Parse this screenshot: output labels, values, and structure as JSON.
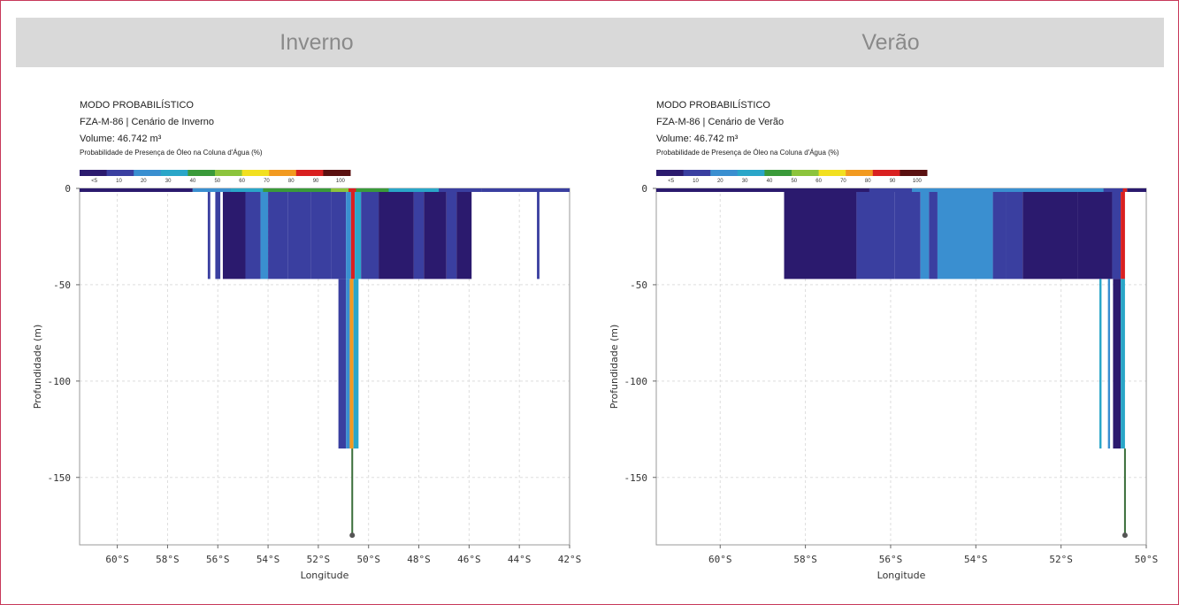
{
  "header": {
    "left_label": "Inverno",
    "right_label": "Verão"
  },
  "colors": {
    "frame": "#c8385a",
    "header_bg": "#d9d9d9",
    "header_text": "#8a8a8a",
    "scale": [
      "#2b1a6e",
      "#3a3fa0",
      "#3a8fd0",
      "#2aa6c8",
      "#3a9a3a",
      "#8cc43c",
      "#f2e020",
      "#f29a20",
      "#d92020",
      "#5a1010"
    ]
  },
  "colorbar": {
    "title": "Probabilidade de Presença de Óleo na Coluna d'Água (%)",
    "ticks": [
      "<5",
      "10",
      "20",
      "30",
      "40",
      "50",
      "60",
      "70",
      "80",
      "90",
      "100"
    ]
  },
  "chart_data": [
    {
      "type": "heatmap",
      "mode_label": "MODO PROBABILÍSTICO",
      "scenario": "FZA-M-86 | Cenário de Inverno",
      "volume": "Volume: 46.742 m³",
      "xlabel": "Longitude",
      "ylabel": "Profundidade (m)",
      "xlim": [
        -61.5,
        -42
      ],
      "ylim": [
        -185,
        0
      ],
      "xticks": [
        "60°S",
        "58°S",
        "56°S",
        "54°S",
        "52°S",
        "50°S",
        "48°S",
        "46°S",
        "44°S",
        "42°S"
      ],
      "xtick_values": [
        -60,
        -58,
        -56,
        -54,
        -52,
        -50,
        -48,
        -46,
        -44,
        -42
      ],
      "yticks": [
        "0",
        "-50",
        "-100",
        "-150"
      ],
      "ytick_values": [
        0,
        -50,
        -100,
        -150
      ],
      "grid": true,
      "surface_strip": [
        {
          "x0": -61.5,
          "x1": -57,
          "c": 0
        },
        {
          "x0": -57,
          "x1": -55.5,
          "c": 2
        },
        {
          "x0": -55.5,
          "x1": -54.2,
          "c": 3
        },
        {
          "x0": -54.2,
          "x1": -52.8,
          "c": 4
        },
        {
          "x0": -52.8,
          "x1": -51.5,
          "c": 4
        },
        {
          "x0": -51.5,
          "x1": -50.8,
          "c": 5
        },
        {
          "x0": -50.8,
          "x1": -50.5,
          "c": 8
        },
        {
          "x0": -50.5,
          "x1": -49.2,
          "c": 4
        },
        {
          "x0": -49.2,
          "x1": -47.2,
          "c": 3
        },
        {
          "x0": -47.2,
          "x1": -45.5,
          "c": 1
        },
        {
          "x0": -45.5,
          "x1": -42,
          "c": 1
        }
      ],
      "upper_columns": [
        {
          "x0": -56.4,
          "x1": -56.3,
          "c": 1
        },
        {
          "x0": -56.1,
          "x1": -55.9,
          "c": 1
        },
        {
          "x0": -55.8,
          "x1": -54.9,
          "c": 0
        },
        {
          "x0": -54.9,
          "x1": -54.3,
          "c": 1
        },
        {
          "x0": -54.3,
          "x1": -54.0,
          "c": 2
        },
        {
          "x0": -54.0,
          "x1": -53.2,
          "c": 1
        },
        {
          "x0": -53.2,
          "x1": -52.3,
          "c": 1
        },
        {
          "x0": -52.3,
          "x1": -51.5,
          "c": 1
        },
        {
          "x0": -51.5,
          "x1": -50.9,
          "c": 1
        },
        {
          "x0": -50.9,
          "x1": -50.7,
          "c": 2
        },
        {
          "x0": -50.7,
          "x1": -50.55,
          "c": 8
        },
        {
          "x0": -50.55,
          "x1": -50.3,
          "c": 3
        },
        {
          "x0": -50.3,
          "x1": -49.6,
          "c": 1
        },
        {
          "x0": -49.6,
          "x1": -48.2,
          "c": 0
        },
        {
          "x0": -48.2,
          "x1": -47.8,
          "c": 1
        },
        {
          "x0": -47.8,
          "x1": -46.9,
          "c": 0
        },
        {
          "x0": -46.9,
          "x1": -46.5,
          "c": 1
        },
        {
          "x0": -46.5,
          "x1": -45.9,
          "c": 0
        },
        {
          "x0": -43.3,
          "x1": -43.2,
          "c": 1
        }
      ],
      "upper_depth": -47,
      "lower_columns": [
        {
          "x0": -51.2,
          "x1": -50.9,
          "c": 1
        },
        {
          "x0": -50.9,
          "x1": -50.75,
          "c": 2
        },
        {
          "x0": -50.75,
          "x1": -50.6,
          "c": 7
        },
        {
          "x0": -50.6,
          "x1": -50.4,
          "c": 3
        }
      ],
      "lower_depth": -135,
      "pipe": {
        "x": -50.65,
        "depth": -180
      }
    },
    {
      "type": "heatmap",
      "mode_label": "MODO PROBABILÍSTICO",
      "scenario": "FZA-M-86 | Cenário de Verão",
      "volume": "Volume: 46.742 m³",
      "xlabel": "Longitude",
      "ylabel": "Profundidade (m)",
      "xlim": [
        -61.5,
        -50
      ],
      "ylim": [
        -185,
        0
      ],
      "xticks": [
        "60°S",
        "58°S",
        "56°S",
        "54°S",
        "52°S",
        "50°S"
      ],
      "xtick_values": [
        -60,
        -58,
        -56,
        -54,
        -52,
        -50
      ],
      "yticks": [
        "0",
        "-50",
        "-100",
        "-150"
      ],
      "ytick_values": [
        0,
        -50,
        -100,
        -150
      ],
      "grid": true,
      "surface_strip": [
        {
          "x0": -61.5,
          "x1": -56.5,
          "c": 0
        },
        {
          "x0": -56.5,
          "x1": -55.5,
          "c": 1
        },
        {
          "x0": -55.5,
          "x1": -51.0,
          "c": 2
        },
        {
          "x0": -51.0,
          "x1": -50.55,
          "c": 1
        },
        {
          "x0": -50.55,
          "x1": -50.45,
          "c": 8
        },
        {
          "x0": -50.45,
          "x1": -50,
          "c": 0
        }
      ],
      "upper_columns": [
        {
          "x0": -58.5,
          "x1": -56.8,
          "c": 0
        },
        {
          "x0": -56.8,
          "x1": -55.9,
          "c": 1
        },
        {
          "x0": -55.9,
          "x1": -55.3,
          "c": 1
        },
        {
          "x0": -55.3,
          "x1": -55.1,
          "c": 2
        },
        {
          "x0": -55.1,
          "x1": -54.9,
          "c": 1
        },
        {
          "x0": -54.9,
          "x1": -53.6,
          "c": 2
        },
        {
          "x0": -53.6,
          "x1": -53.3,
          "c": 1
        },
        {
          "x0": -53.3,
          "x1": -52.9,
          "c": 1
        },
        {
          "x0": -52.9,
          "x1": -51.6,
          "c": 0
        },
        {
          "x0": -51.6,
          "x1": -50.8,
          "c": 0
        },
        {
          "x0": -50.8,
          "x1": -50.6,
          "c": 1
        },
        {
          "x0": -50.6,
          "x1": -50.5,
          "c": 8
        }
      ],
      "upper_depth": -47,
      "lower_columns": [
        {
          "x0": -51.1,
          "x1": -51.05,
          "c": 3
        },
        {
          "x0": -50.9,
          "x1": -50.85,
          "c": 2
        },
        {
          "x0": -50.78,
          "x1": -50.6,
          "c": 0
        },
        {
          "x0": -50.6,
          "x1": -50.5,
          "c": 3
        }
      ],
      "lower_depth": -135,
      "pipe": {
        "x": -50.5,
        "depth": -180
      }
    }
  ]
}
